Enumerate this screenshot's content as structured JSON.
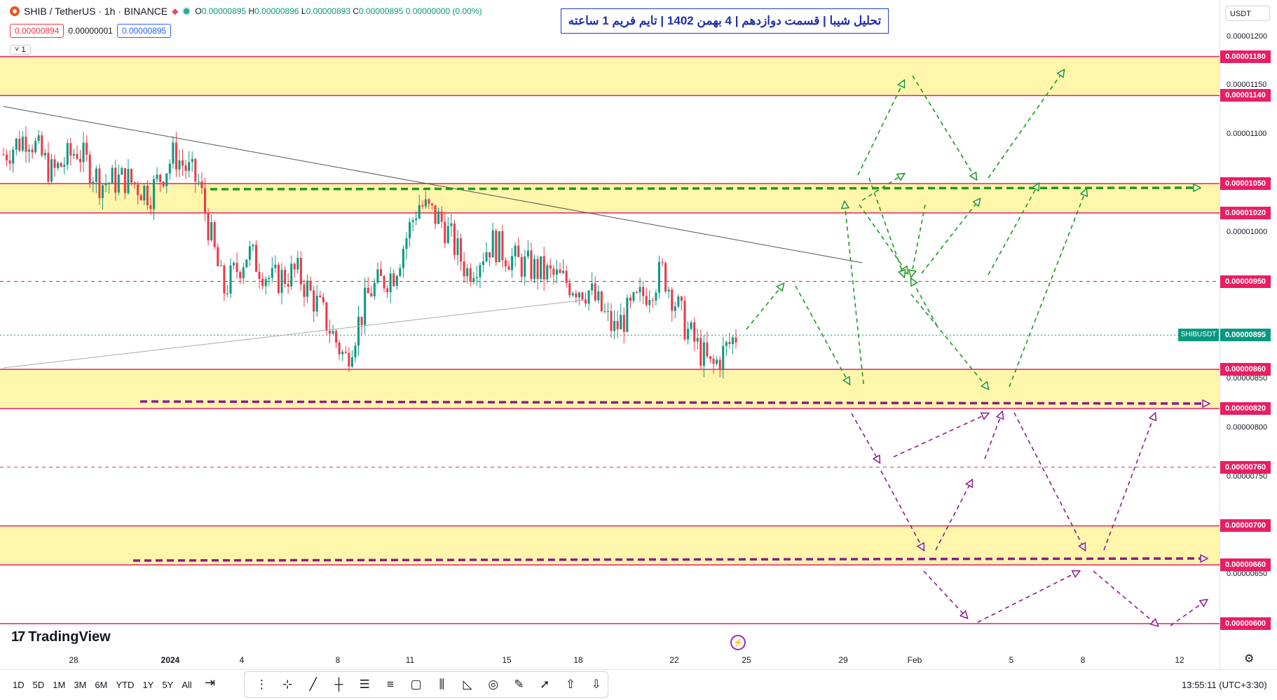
{
  "header": {
    "symbol": "SHIB / TetherUS · 1h · BINANCE",
    "ohlc": {
      "o_label": "O",
      "o": "0.00000895",
      "h_label": "H",
      "h": "0.00000896",
      "l_label": "L",
      "l": "0.00000893",
      "c_label": "C",
      "c": "0.00000895",
      "change": "0.00000000 (0.00%)"
    },
    "bid": "0.00000894",
    "spread": "0.00000001",
    "ask": "0.00000895",
    "indicators_count": "1"
  },
  "title": "تحلیل شیبا | قسمت دوازدهم | 4 بهمن 1402 | تایم فریم 1 ساعته",
  "currency": "USDT",
  "price_ticks": [
    "0.00001200",
    "0.00001150",
    "0.00001100",
    "0.00001000",
    "0.00000850",
    "0.00000800",
    "0.00000750",
    "0.00000650"
  ],
  "levels": [
    "0.00001180",
    "0.00001140",
    "0.00001050",
    "0.00001020",
    "0.00000950",
    "0.00000895",
    "0.00000860",
    "0.00000820",
    "0.00000760",
    "0.00000700",
    "0.00000660",
    "0.00000600"
  ],
  "symbol_tag": "SHIBUSDT",
  "time_ticks": [
    "28",
    "2024",
    "4",
    "8",
    "11",
    "15",
    "18",
    "22",
    "25",
    "29",
    "Feb",
    "5",
    "8",
    "12"
  ],
  "brand": "TradingView",
  "ranges": [
    "1D",
    "5D",
    "1M",
    "3M",
    "6M",
    "YTD",
    "1Y",
    "5Y",
    "All"
  ],
  "clock": "13:55:11 (UTC+3:30)",
  "colors": {
    "zone": "#fff59d",
    "level_line": "#e91e63",
    "green_arrow": "#1a9c1a",
    "purple_arrow": "#8e1a8e",
    "up_candle": "#089981",
    "down_candle": "#f23645"
  },
  "chart_data": {
    "type": "candlestick",
    "title": "",
    "symbol": "SHIBUSDT",
    "interval": "1h",
    "ylim": [
      5.8e-06,
      1.22e-05
    ],
    "close_path": [
      [
        "Dec 26",
        1.08e-05
      ],
      [
        "Dec 27",
        1.1e-05
      ],
      [
        "Dec 28",
        1.06e-05
      ],
      [
        "Dec 29",
        1.085e-05
      ],
      [
        "Dec 30",
        1.05e-05
      ],
      [
        "Dec 31",
        1.055e-05
      ],
      [
        "Jan 1",
        1.04e-05
      ],
      [
        "Jan 2",
        1.08e-05
      ],
      [
        "Jan 3",
        1.05e-05
      ],
      [
        "Jan 3b",
        9.4e-06
      ],
      [
        "Jan 4",
        9.8e-06
      ],
      [
        "Jan 5",
        9.5e-06
      ],
      [
        "Jan 6",
        9.6e-06
      ],
      [
        "Jan 7",
        9.2e-06
      ],
      [
        "Jan 8",
        8.7e-06
      ],
      [
        "Jan 9",
        9.4e-06
      ],
      [
        "Jan 10",
        9.6e-06
      ],
      [
        "Jan 11",
        1.03e-05
      ],
      [
        "Jan 12",
        1.01e-05
      ],
      [
        "Jan 13",
        9.6e-06
      ],
      [
        "Jan 14",
        9.9e-06
      ],
      [
        "Jan 15",
        9.7e-06
      ],
      [
        "Jan 16",
        9.6e-06
      ],
      [
        "Jan 17",
        9.5e-06
      ],
      [
        "Jan 18",
        9.4e-06
      ],
      [
        "Jan 19",
        9e-06
      ],
      [
        "Jan 20",
        9.3e-06
      ],
      [
        "Jan 21",
        9.6e-06
      ],
      [
        "Jan 22",
        9e-06
      ],
      [
        "Jan 23",
        8.6e-06
      ],
      [
        "Jan 24",
        8.95e-06
      ]
    ]
  }
}
